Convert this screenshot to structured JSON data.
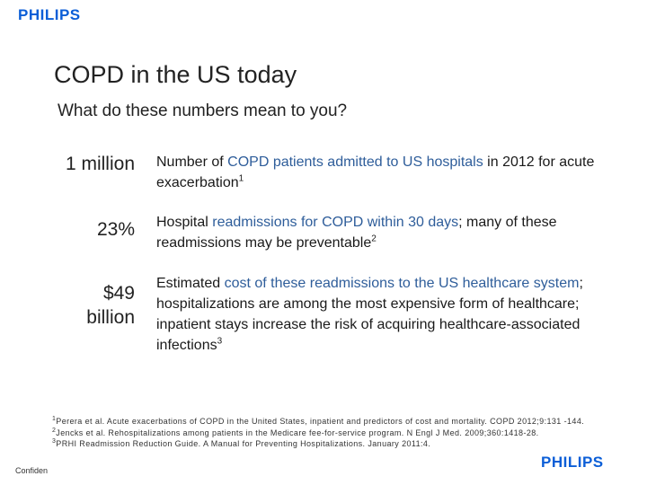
{
  "brand": {
    "logo_text": "PHILIPS",
    "color": "#0b5ed7"
  },
  "slide": {
    "title": "COPD in the US today",
    "subtitle": "What do these numbers mean to you?"
  },
  "stats": [
    {
      "value": "1 million",
      "desc_1": "Number of ",
      "desc_hl": "COPD patients admitted to US hospitals",
      "desc_2": " in 2012 for acute exacerbation",
      "ref": "1"
    },
    {
      "value": "23%",
      "desc_1": "Hospital ",
      "desc_hl": "readmissions for COPD within 30 days",
      "desc_2": "; many of these readmissions may be preventable",
      "ref": "2"
    },
    {
      "value_line1": "$49",
      "value_line2": "billion",
      "desc_1": "Estimated ",
      "desc_hl": "cost of these readmissions to the US healthcare system",
      "desc_2": "; hospitalizations are among the most expensive form of healthcare; inpatient stays increase the risk of acquiring healthcare-associated infections",
      "ref": "3"
    }
  ],
  "footnotes": [
    {
      "num": "1",
      "text": "Perera et al. Acute exacerbations of COPD in the United States, inpatient and predictors of cost and mortality. COPD 2012;9:131 -144."
    },
    {
      "num": "2",
      "text": "Jencks et al. Rehospitalizations among patients in the Medicare fee-for-service program. N Engl J Med. 2009;360:1418-28."
    },
    {
      "num": "3",
      "text": "PRHI Readmission Reduction Guide. A Manual for Preventing Hospitalizations. January 2011:4."
    }
  ],
  "confidential_label": "Confiden"
}
